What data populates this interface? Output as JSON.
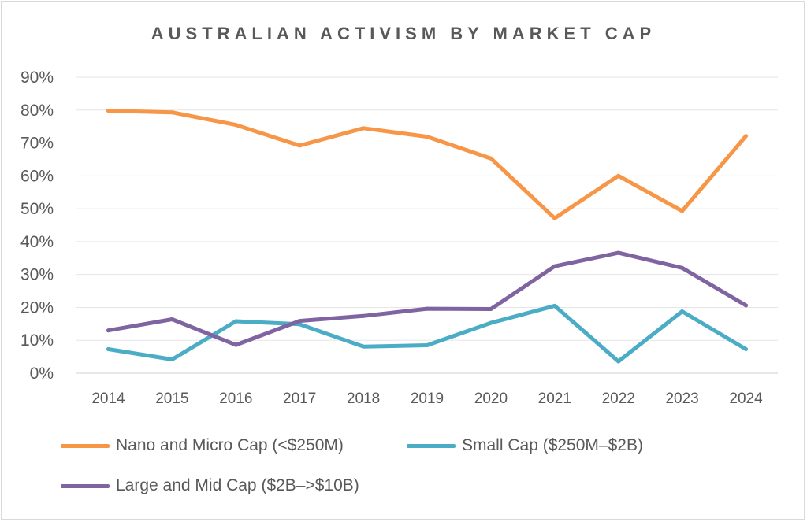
{
  "chart_data": {
    "type": "line",
    "title": "AUSTRALIAN ACTIVISM BY MARKET CAP",
    "xlabel": "",
    "ylabel": "",
    "categories": [
      "2014",
      "2015",
      "2016",
      "2017",
      "2018",
      "2019",
      "2020",
      "2021",
      "2022",
      "2023",
      "2024"
    ],
    "ylim": [
      0,
      90
    ],
    "yticks": [
      "0%",
      "10%",
      "20%",
      "30%",
      "40%",
      "50%",
      "60%",
      "70%",
      "80%",
      "90%"
    ],
    "grid": true,
    "legend_position": "bottom",
    "series": [
      {
        "name": "Nano and Micro Cap (<$250M)",
        "color": "#F79646",
        "values": [
          79.8,
          79.3,
          75.5,
          69.2,
          74.5,
          71.9,
          65.3,
          47.1,
          60.0,
          49.3,
          72.1
        ]
      },
      {
        "name": "Small Cap ($250M–$2B)",
        "color": "#4BACC6",
        "values": [
          7.3,
          4.2,
          15.8,
          14.9,
          8.1,
          8.5,
          15.3,
          20.5,
          3.6,
          18.8,
          7.3
        ]
      },
      {
        "name": "Large and Mid Cap ($2B–>$10B)",
        "color": "#8064A2",
        "values": [
          13.0,
          16.4,
          8.6,
          15.9,
          17.4,
          19.6,
          19.5,
          32.5,
          36.6,
          32.0,
          20.6
        ]
      }
    ]
  }
}
